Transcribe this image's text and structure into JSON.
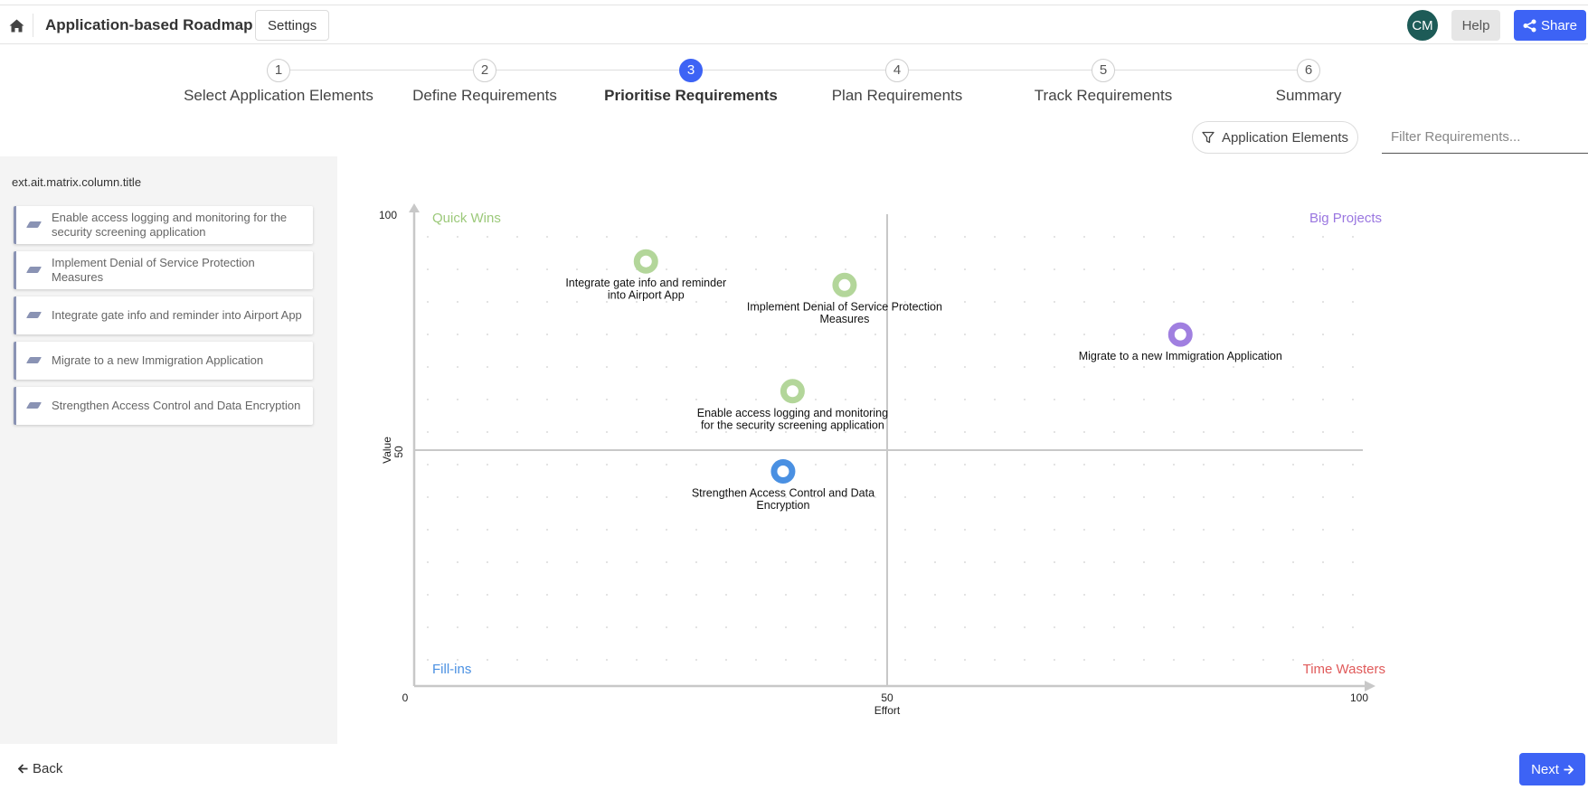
{
  "header": {
    "title": "Application-based Roadmap",
    "settings_label": "Settings",
    "avatar_initials": "CM",
    "help_label": "Help",
    "share_label": "Share",
    "accent_color": "#3d63f5"
  },
  "stepper": {
    "active_step": 3,
    "steps": [
      {
        "num": "1",
        "label": "Select Application Elements"
      },
      {
        "num": "2",
        "label": "Define Requirements"
      },
      {
        "num": "3",
        "label": "Prioritise Requirements"
      },
      {
        "num": "4",
        "label": "Plan Requirements"
      },
      {
        "num": "5",
        "label": "Track Requirements"
      },
      {
        "num": "6",
        "label": "Summary"
      }
    ]
  },
  "filters": {
    "elements_label": "Application Elements",
    "search_placeholder": "Filter Requirements..."
  },
  "sidebar": {
    "column_title": "ext.ait.matrix.column.title",
    "requirements": [
      {
        "label": "Enable access logging and monitoring for the security screening application"
      },
      {
        "label": "Implement Denial of Service Protection Measures"
      },
      {
        "label": "Integrate gate info and reminder into Airport App"
      },
      {
        "label": "Migrate to a new Immigration Application"
      },
      {
        "label": "Strengthen Access Control and Data Encryption"
      }
    ]
  },
  "chart_data": {
    "type": "scatter",
    "xlabel": "Effort",
    "ylabel": "Value",
    "xlim": [
      0,
      100
    ],
    "ylim": [
      0,
      100
    ],
    "x_ticks": [
      "0",
      "50",
      "100"
    ],
    "y_ticks": [
      "100",
      "50"
    ],
    "grid": "dotted",
    "quadrants": [
      {
        "label": "Quick Wins",
        "position": "top-left",
        "color": "#9cc97a"
      },
      {
        "label": "Big Projects",
        "position": "top-right",
        "color": "#9a76e0"
      },
      {
        "label": "Fill-ins",
        "position": "bottom-left",
        "color": "#4a90e2"
      },
      {
        "label": "Time Wasters",
        "position": "bottom-right",
        "color": "#e05a5a"
      }
    ],
    "points": [
      {
        "label": "Integrate gate info and reminder into Airport App",
        "label_lines": [
          "Integrate gate info and reminder",
          "into Airport App"
        ],
        "x": 24.5,
        "y": 90,
        "color": "#b3d69a"
      },
      {
        "label": "Implement Denial of Service Protection Measures",
        "label_lines": [
          "Implement Denial of Service Protection",
          "Measures"
        ],
        "x": 45.5,
        "y": 85,
        "color": "#b3d69a"
      },
      {
        "label": "Migrate to a new Immigration Application",
        "label_lines": [
          "Migrate to a new Immigration Application"
        ],
        "x": 81,
        "y": 74.5,
        "color": "#a07fe0"
      },
      {
        "label": "Enable access logging and monitoring for the security screening application",
        "label_lines": [
          "Enable access logging and monitoring",
          "for the security screening application"
        ],
        "x": 40,
        "y": 62.5,
        "color": "#b3d69a"
      },
      {
        "label": "Strengthen Access Control and Data Encryption",
        "label_lines": [
          "Strengthen Access Control and Data",
          "Encryption"
        ],
        "x": 39,
        "y": 45.5,
        "color": "#4a90e2"
      }
    ]
  },
  "footer": {
    "back_label": "Back",
    "next_label": "Next"
  }
}
